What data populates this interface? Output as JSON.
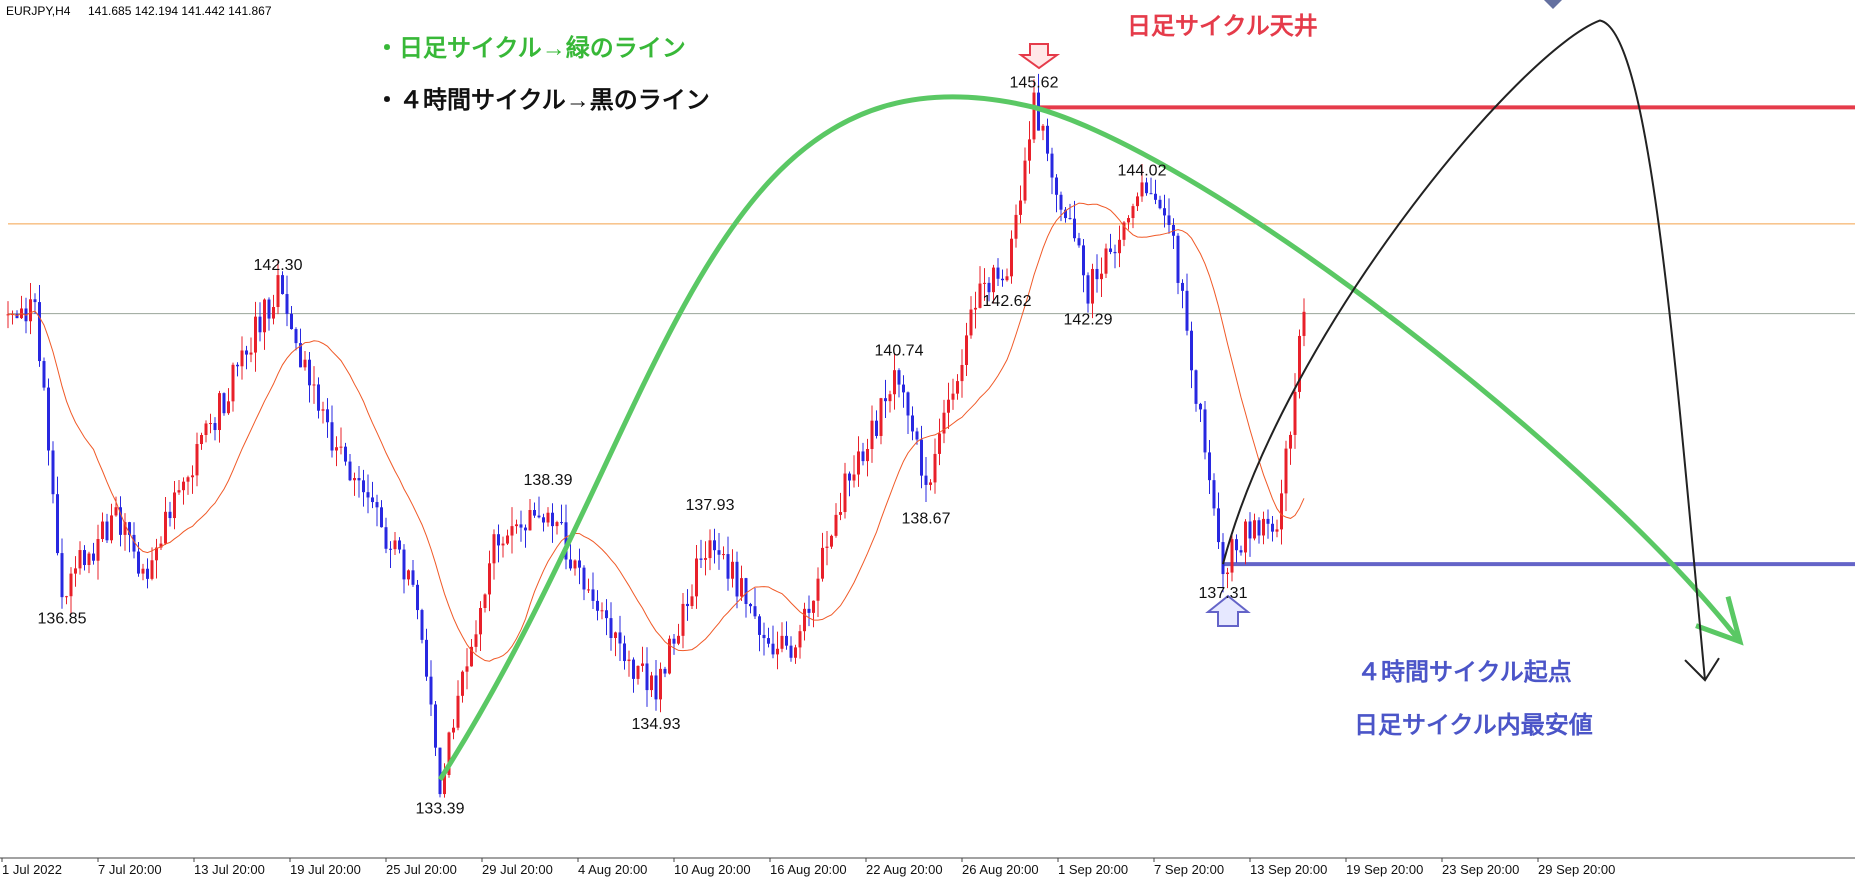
{
  "chart_data": {
    "type": "candlestick",
    "header": {
      "symbol": "EURJPY,H4",
      "ohlc": "141.685 142.194 141.442 141.867"
    },
    "x_labels": [
      "1 Jul 2022",
      "7 Jul 20:00",
      "13 Jul 20:00",
      "19 Jul 20:00",
      "25 Jul 20:00",
      "29 Jul 20:00",
      "4 Aug 20:00",
      "10 Aug 20:00",
      "16 Aug 20:00",
      "22 Aug 20:00",
      "26 Aug 20:00",
      "1 Sep 20:00",
      "7 Sep 20:00",
      "13 Sep 20:00",
      "19 Sep 20:00",
      "23 Sep 20:00",
      "29 Sep 20:00"
    ],
    "ylim": [
      132.0,
      147.5
    ],
    "price_labels": [
      {
        "text": "136.85",
        "value": 136.85,
        "pos": "below",
        "idx": 2
      },
      {
        "text": "142.30",
        "value": 142.3,
        "pos": "above",
        "idx": 10
      },
      {
        "text": "133.39",
        "value": 133.39,
        "pos": "below",
        "idx": 16
      },
      {
        "text": "138.39",
        "value": 138.39,
        "pos": "above",
        "idx": 20
      },
      {
        "text": "134.93",
        "value": 134.93,
        "pos": "below",
        "idx": 24
      },
      {
        "text": "137.93",
        "value": 137.93,
        "pos": "above",
        "idx": 26
      },
      {
        "text": "140.74",
        "value": 140.74,
        "pos": "above",
        "idx": 33
      },
      {
        "text": "138.67",
        "value": 138.67,
        "pos": "below",
        "idx": 34
      },
      {
        "text": "142.62",
        "value": 142.62,
        "pos": "below",
        "idx": 37
      },
      {
        "text": "145.62",
        "value": 145.62,
        "pos": "above",
        "idx": 38
      },
      {
        "text": "142.29",
        "value": 142.29,
        "pos": "below",
        "idx": 40
      },
      {
        "text": "144.02",
        "value": 144.02,
        "pos": "above",
        "idx": 42
      },
      {
        "text": "137.31",
        "value": 137.31,
        "pos": "below",
        "idx": 45
      }
    ],
    "pivots": [
      {
        "x": 0,
        "v": 141.6
      },
      {
        "x": 1,
        "v": 142.0
      },
      {
        "x": 2,
        "v": 136.85
      },
      {
        "x": 4,
        "v": 138.2
      },
      {
        "x": 5,
        "v": 137.1
      },
      {
        "x": 9,
        "v": 141.4
      },
      {
        "x": 10,
        "v": 142.3
      },
      {
        "x": 12,
        "v": 139.5
      },
      {
        "x": 15,
        "v": 137.0
      },
      {
        "x": 16,
        "v": 133.39
      },
      {
        "x": 18,
        "v": 137.6
      },
      {
        "x": 20,
        "v": 138.39
      },
      {
        "x": 22,
        "v": 136.2
      },
      {
        "x": 24,
        "v": 134.93
      },
      {
        "x": 26,
        "v": 137.93
      },
      {
        "x": 28,
        "v": 136.0
      },
      {
        "x": 29,
        "v": 135.6
      },
      {
        "x": 31,
        "v": 138.7
      },
      {
        "x": 33,
        "v": 140.74
      },
      {
        "x": 34,
        "v": 138.67
      },
      {
        "x": 36,
        "v": 142.4
      },
      {
        "x": 37,
        "v": 142.62
      },
      {
        "x": 38,
        "v": 145.62
      },
      {
        "x": 40,
        "v": 142.29
      },
      {
        "x": 42,
        "v": 144.02
      },
      {
        "x": 43,
        "v": 143.6
      },
      {
        "x": 45,
        "v": 137.31
      },
      {
        "x": 46,
        "v": 138.0
      },
      {
        "x": 47,
        "v": 137.9
      },
      {
        "x": 48,
        "v": 141.9
      }
    ],
    "h_lines": [
      {
        "name": "daily-top-line",
        "value": 145.62,
        "color": "#e53b4a",
        "from_idx": 38
      },
      {
        "name": "orange-level-line",
        "value": 143.5,
        "color": "#f4a24a",
        "from_idx": 0
      },
      {
        "name": "current-price-line",
        "value": 141.867,
        "color": "#9aa59a",
        "from_idx": 0
      },
      {
        "name": "cycle-low-line",
        "value": 137.31,
        "color": "#6464c8",
        "from_idx": 45
      }
    ],
    "annotations": {
      "green_title": "・日足サイクル→緑のライン",
      "black_title": "・４時間サイクル→黒のライン",
      "daily_top": "日足サイクル天井",
      "cycle_start": "４時間サイクル起点",
      "cycle_low": "日足サイクル内最安値"
    },
    "colors": {
      "bull": "#e8202a",
      "bear": "#2828e0",
      "ma": "#f05a28",
      "green_curve": "#5ac864",
      "black_curve": "#222222",
      "blue_arrow": "#6464c8",
      "red_arrow": "#e53b4a",
      "green_text": "#38b838",
      "black_text": "#111111",
      "red_text": "#e53b4a",
      "blue_text": "#4b55c8"
    }
  }
}
